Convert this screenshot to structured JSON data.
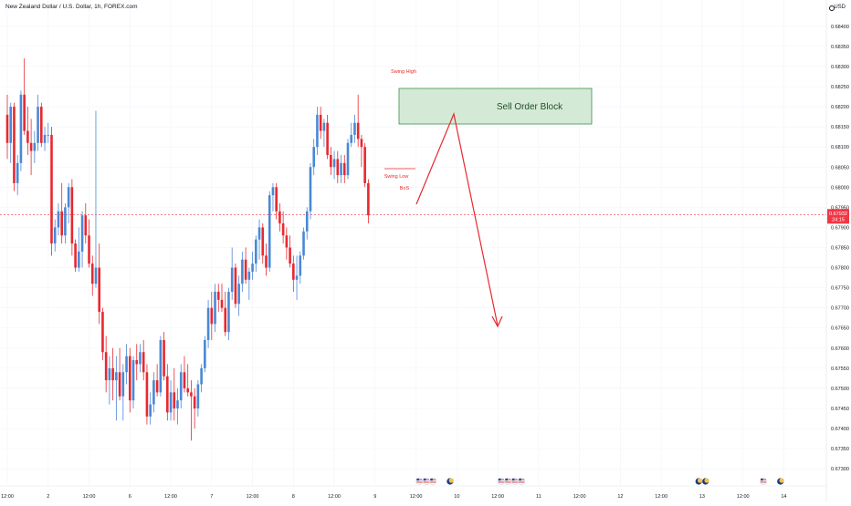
{
  "header": {
    "symbol": "New Zealand Dollar / U.S. Dollar, 1h, FOREX.com",
    "currency": "USD"
  },
  "price_axis": {
    "ticks": [
      "0.68400",
      "0.68350",
      "0.68300",
      "0.68250",
      "0.68200",
      "0.68150",
      "0.68100",
      "0.68050",
      "0.68000",
      "0.67950",
      "0.67900",
      "0.67850",
      "0.67800",
      "0.67750",
      "0.67700",
      "0.67650",
      "0.67600",
      "0.67550",
      "0.67500",
      "0.67450",
      "0.67400",
      "0.67350",
      "0.67300"
    ],
    "current_price": "0.67932",
    "countdown": "24:15"
  },
  "time_axis": {
    "ticks": [
      {
        "label": "12:00",
        "bar": 0
      },
      {
        "label": "2",
        "bar": 12
      },
      {
        "label": "12:00",
        "bar": 24
      },
      {
        "label": "6",
        "bar": 36
      },
      {
        "label": "12:00",
        "bar": 48
      },
      {
        "label": "7",
        "bar": 60
      },
      {
        "label": "12:00",
        "bar": 72
      },
      {
        "label": "8",
        "bar": 84
      },
      {
        "label": "12:00",
        "bar": 96
      },
      {
        "label": "9",
        "bar": 108
      },
      {
        "label": "12:00",
        "bar": 120
      },
      {
        "label": "10",
        "bar": 132
      },
      {
        "label": "12:00",
        "bar": 144
      },
      {
        "label": "11",
        "bar": 156
      },
      {
        "label": "12:00",
        "bar": 168
      },
      {
        "label": "12",
        "bar": 180
      },
      {
        "label": "12:00",
        "bar": 192
      },
      {
        "label": "13",
        "bar": 204
      },
      {
        "label": "12:00",
        "bar": 216
      },
      {
        "label": "14",
        "bar": 228
      }
    ]
  },
  "annotations": {
    "order_block_label": "Sell Order Block",
    "swing_high": "Swing High",
    "swing_low": "Swing Low",
    "bos": "BoS"
  },
  "event_icons": [
    {
      "type": "flag-us",
      "bar": 121
    },
    {
      "type": "flag-us",
      "bar": 123
    },
    {
      "type": "flag-us",
      "bar": 125
    },
    {
      "type": "moon",
      "bar": 130
    },
    {
      "type": "flag-us",
      "bar": 145
    },
    {
      "type": "flag-us",
      "bar": 147
    },
    {
      "type": "flag-us",
      "bar": 149
    },
    {
      "type": "flag-us",
      "bar": 151
    },
    {
      "type": "moon",
      "bar": 203
    },
    {
      "type": "moon",
      "bar": 205
    },
    {
      "type": "flag-us",
      "bar": 222
    },
    {
      "type": "moon",
      "bar": 227
    }
  ],
  "colors": {
    "up": "#4a88d6",
    "down": "#e8282f",
    "order_block_fill": "#d5ead6",
    "order_block_border": "#3d8f4a",
    "annotation_text": "#e8282f",
    "price_label_bg": "#f23645",
    "grid": "#f0f3fa",
    "axis_text": "#131722"
  },
  "chart_data": {
    "type": "candlestick",
    "instrument": "NZD/USD",
    "timeframe": "1h",
    "ylim": [
      0.6728,
      0.6842
    ],
    "candles": [
      [
        0.6818,
        0.6823,
        0.6807,
        0.6811
      ],
      [
        0.6811,
        0.6821,
        0.6806,
        0.682
      ],
      [
        0.682,
        0.6821,
        0.6799,
        0.6801
      ],
      [
        0.6801,
        0.6808,
        0.6798,
        0.6806
      ],
      [
        0.6806,
        0.6824,
        0.6804,
        0.6823
      ],
      [
        0.6823,
        0.6832,
        0.6813,
        0.6814
      ],
      [
        0.6814,
        0.682,
        0.6808,
        0.6811
      ],
      [
        0.6811,
        0.6817,
        0.6803,
        0.6809
      ],
      [
        0.6809,
        0.6814,
        0.6806,
        0.6811
      ],
      [
        0.6811,
        0.6823,
        0.6809,
        0.682
      ],
      [
        0.682,
        0.6821,
        0.681,
        0.6811
      ],
      [
        0.6811,
        0.6815,
        0.6809,
        0.6813
      ],
      [
        0.6813,
        0.6816,
        0.6811,
        0.6813
      ],
      [
        0.6813,
        0.6815,
        0.6783,
        0.6786
      ],
      [
        0.6786,
        0.6792,
        0.6784,
        0.679
      ],
      [
        0.679,
        0.6796,
        0.6788,
        0.6794
      ],
      [
        0.6794,
        0.6801,
        0.6786,
        0.6788
      ],
      [
        0.6788,
        0.6796,
        0.6786,
        0.6795
      ],
      [
        0.6795,
        0.6801,
        0.6791,
        0.68
      ],
      [
        0.68,
        0.6802,
        0.6783,
        0.6786
      ],
      [
        0.6786,
        0.6787,
        0.6779,
        0.678
      ],
      [
        0.678,
        0.679,
        0.6779,
        0.6784
      ],
      [
        0.6784,
        0.6794,
        0.678,
        0.6793
      ],
      [
        0.6793,
        0.6796,
        0.6786,
        0.6788
      ],
      [
        0.6788,
        0.6792,
        0.678,
        0.6781
      ],
      [
        0.6781,
        0.6783,
        0.6773,
        0.6776
      ],
      [
        0.6776,
        0.6819,
        0.6775,
        0.678
      ],
      [
        0.678,
        0.6786,
        0.6766,
        0.6769
      ],
      [
        0.6769,
        0.677,
        0.6757,
        0.6759
      ],
      [
        0.6759,
        0.6763,
        0.6749,
        0.6752
      ],
      [
        0.6752,
        0.6758,
        0.6746,
        0.6755
      ],
      [
        0.6755,
        0.676,
        0.6747,
        0.6752
      ],
      [
        0.6752,
        0.6758,
        0.6742,
        0.6754
      ],
      [
        0.6754,
        0.676,
        0.6747,
        0.6748
      ],
      [
        0.6748,
        0.6756,
        0.6742,
        0.6754
      ],
      [
        0.6754,
        0.6761,
        0.6751,
        0.6758
      ],
      [
        0.6758,
        0.676,
        0.6744,
        0.6747
      ],
      [
        0.6747,
        0.6758,
        0.6745,
        0.6757
      ],
      [
        0.6757,
        0.6761,
        0.6752,
        0.6756
      ],
      [
        0.6756,
        0.6761,
        0.6754,
        0.6759
      ],
      [
        0.6759,
        0.6762,
        0.6752,
        0.6754
      ],
      [
        0.6754,
        0.6756,
        0.6741,
        0.6743
      ],
      [
        0.6743,
        0.6749,
        0.6741,
        0.6746
      ],
      [
        0.6746,
        0.6754,
        0.6744,
        0.6752
      ],
      [
        0.6752,
        0.6756,
        0.6748,
        0.6749
      ],
      [
        0.6749,
        0.6763,
        0.6748,
        0.6762
      ],
      [
        0.6762,
        0.6764,
        0.6752,
        0.6753
      ],
      [
        0.6753,
        0.6756,
        0.6742,
        0.6744
      ],
      [
        0.6744,
        0.6752,
        0.6742,
        0.6749
      ],
      [
        0.6749,
        0.6755,
        0.6742,
        0.6745
      ],
      [
        0.6745,
        0.675,
        0.6741,
        0.6747
      ],
      [
        0.6747,
        0.6756,
        0.6745,
        0.6754
      ],
      [
        0.6754,
        0.6758,
        0.6749,
        0.675
      ],
      [
        0.675,
        0.6756,
        0.6748,
        0.6749
      ],
      [
        0.6749,
        0.6752,
        0.6737,
        0.6748
      ],
      [
        0.6748,
        0.675,
        0.674,
        0.6745
      ],
      [
        0.6745,
        0.6752,
        0.6743,
        0.6751
      ],
      [
        0.6751,
        0.6756,
        0.6749,
        0.6755
      ],
      [
        0.6755,
        0.6763,
        0.6754,
        0.6762
      ],
      [
        0.6762,
        0.6772,
        0.676,
        0.677
      ],
      [
        0.677,
        0.6774,
        0.6762,
        0.6766
      ],
      [
        0.6766,
        0.6776,
        0.6764,
        0.6774
      ],
      [
        0.6774,
        0.6776,
        0.6769,
        0.6772
      ],
      [
        0.6772,
        0.6776,
        0.6769,
        0.677
      ],
      [
        0.677,
        0.6774,
        0.6763,
        0.6764
      ],
      [
        0.6764,
        0.6775,
        0.6762,
        0.6774
      ],
      [
        0.6774,
        0.6785,
        0.6772,
        0.678
      ],
      [
        0.678,
        0.6781,
        0.677,
        0.6771
      ],
      [
        0.6771,
        0.6778,
        0.6768,
        0.6776
      ],
      [
        0.6776,
        0.6784,
        0.6774,
        0.6782
      ],
      [
        0.6782,
        0.6785,
        0.6776,
        0.6777
      ],
      [
        0.6777,
        0.678,
        0.6772,
        0.6779
      ],
      [
        0.6779,
        0.6784,
        0.6777,
        0.6781
      ],
      [
        0.6781,
        0.6788,
        0.6779,
        0.6787
      ],
      [
        0.6787,
        0.6792,
        0.6782,
        0.679
      ],
      [
        0.679,
        0.6791,
        0.6781,
        0.6783
      ],
      [
        0.6783,
        0.6786,
        0.6778,
        0.678
      ],
      [
        0.678,
        0.6799,
        0.6779,
        0.6798
      ],
      [
        0.6798,
        0.6801,
        0.6794,
        0.68
      ],
      [
        0.68,
        0.6801,
        0.6792,
        0.6794
      ],
      [
        0.6794,
        0.6796,
        0.6789,
        0.6791
      ],
      [
        0.6791,
        0.6794,
        0.6786,
        0.6788
      ],
      [
        0.6788,
        0.679,
        0.6782,
        0.6785
      ],
      [
        0.6785,
        0.6788,
        0.678,
        0.6781
      ],
      [
        0.6781,
        0.6783,
        0.6774,
        0.6777
      ],
      [
        0.6777,
        0.6783,
        0.6772,
        0.6778
      ],
      [
        0.6778,
        0.6784,
        0.6776,
        0.6783
      ],
      [
        0.6783,
        0.679,
        0.6782,
        0.6789
      ],
      [
        0.6789,
        0.6795,
        0.6787,
        0.6794
      ],
      [
        0.6794,
        0.6806,
        0.6792,
        0.6805
      ],
      [
        0.6805,
        0.6812,
        0.6803,
        0.681
      ],
      [
        0.681,
        0.682,
        0.6808,
        0.6818
      ],
      [
        0.6818,
        0.682,
        0.6812,
        0.6814
      ],
      [
        0.6814,
        0.6817,
        0.681,
        0.6816
      ],
      [
        0.6816,
        0.6818,
        0.6807,
        0.6808
      ],
      [
        0.6808,
        0.681,
        0.6803,
        0.6805
      ],
      [
        0.6805,
        0.6809,
        0.6802,
        0.6807
      ],
      [
        0.6807,
        0.6809,
        0.6801,
        0.6803
      ],
      [
        0.6803,
        0.6808,
        0.6801,
        0.6806
      ],
      [
        0.6806,
        0.6808,
        0.6801,
        0.6803
      ],
      [
        0.6803,
        0.6812,
        0.6802,
        0.6811
      ],
      [
        0.6811,
        0.6816,
        0.681,
        0.6813
      ],
      [
        0.6813,
        0.6818,
        0.6811,
        0.6816
      ],
      [
        0.6816,
        0.6823,
        0.681,
        0.6812
      ],
      [
        0.6812,
        0.6813,
        0.6805,
        0.681
      ],
      [
        0.681,
        0.6811,
        0.68,
        0.6801
      ],
      [
        0.6801,
        0.6802,
        0.6791,
        0.6793
      ]
    ]
  }
}
